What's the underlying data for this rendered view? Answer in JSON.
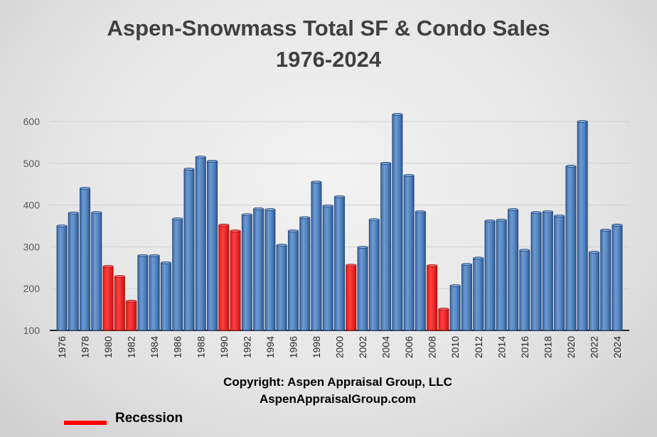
{
  "chart_data": {
    "type": "bar",
    "title": "Aspen-Snowmass Total SF & Condo Sales",
    "subtitle": "1976-2024",
    "xlabel": "",
    "ylabel": "",
    "ylim": [
      100,
      650
    ],
    "yticks": [
      100,
      200,
      300,
      400,
      500,
      600
    ],
    "grid": true,
    "categories": [
      "1976",
      "1977",
      "1978",
      "1979",
      "1980",
      "1981",
      "1982",
      "1983",
      "1984",
      "1985",
      "1986",
      "1987",
      "1988",
      "1989",
      "1990",
      "1991",
      "1992",
      "1993",
      "1994",
      "1995",
      "1996",
      "1997",
      "1998",
      "1999",
      "2000",
      "2001",
      "2002",
      "2003",
      "2004",
      "2005",
      "2006",
      "2007",
      "2008",
      "2009",
      "2010",
      "2011",
      "2012",
      "2013",
      "2014",
      "2015",
      "2016",
      "2017",
      "2018",
      "2019",
      "2020",
      "2021",
      "2022",
      "2023",
      "2024"
    ],
    "values": [
      350,
      381,
      440,
      382,
      253,
      229,
      170,
      279,
      279,
      262,
      367,
      486,
      515,
      505,
      352,
      338,
      377,
      391,
      389,
      304,
      338,
      370,
      455,
      398,
      420,
      256,
      299,
      365,
      500,
      617,
      471,
      384,
      255,
      151,
      207,
      258,
      273,
      362,
      364,
      389,
      292,
      382,
      384,
      374,
      493,
      600,
      287,
      340,
      352
    ],
    "recession_years": [
      "1980",
      "1981",
      "1982",
      "1990",
      "1991",
      "2001",
      "2008",
      "2009"
    ],
    "colors": {
      "normal": "#4f81bd",
      "recession": "#ff2a2a"
    },
    "legend": {
      "label": "Recession",
      "placement": "bottom-left"
    }
  },
  "footer": {
    "copyright": "Copyright:  Aspen Appraisal Group, LLC",
    "website": "AspenAppraisalGroup.com"
  }
}
